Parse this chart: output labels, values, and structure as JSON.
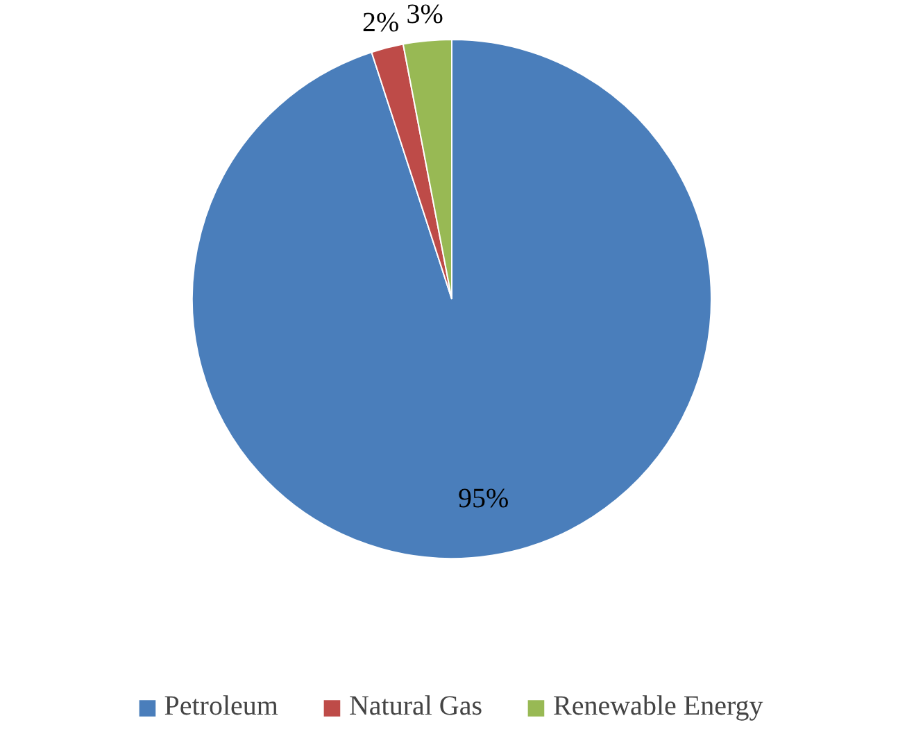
{
  "chart_data": {
    "type": "pie",
    "categories": [
      "Petroleum",
      "Natural Gas",
      "Renewable Energy"
    ],
    "values": [
      95,
      2,
      3
    ],
    "colors": [
      "#4a7ebb",
      "#be4b48",
      "#98b954"
    ],
    "value_labels": [
      "95%",
      "2%",
      "3%"
    ],
    "legend": "bottom"
  }
}
